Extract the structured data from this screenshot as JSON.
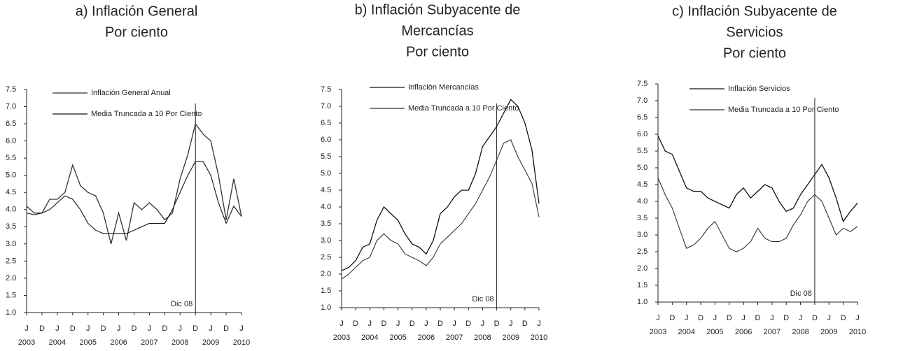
{
  "chart_data": [
    {
      "type": "line",
      "title": [
        "a) Inflación General"
      ],
      "subtitle": "Por ciento",
      "x": [
        "2003-06",
        "2003-09",
        "2003-12",
        "2004-03",
        "2004-06",
        "2004-09",
        "2004-12",
        "2005-03",
        "2005-06",
        "2005-09",
        "2005-12",
        "2006-03",
        "2006-06",
        "2006-09",
        "2006-12",
        "2007-03",
        "2007-06",
        "2007-09",
        "2007-12",
        "2008-03",
        "2008-06",
        "2008-09",
        "2008-12",
        "2009-03",
        "2009-06",
        "2009-09",
        "2009-12",
        "2010-03",
        "2010-06"
      ],
      "series": [
        {
          "name": "Inflación General Anual",
          "color": "#333333",
          "values": [
            4.1,
            3.9,
            3.9,
            4.3,
            4.3,
            4.5,
            5.3,
            4.7,
            4.5,
            4.4,
            3.9,
            3.0,
            3.9,
            3.1,
            4.2,
            4.0,
            4.2,
            4.0,
            3.7,
            3.9,
            4.9,
            5.6,
            6.5,
            6.2,
            6.0,
            5.0,
            3.7,
            4.9,
            3.8
          ]
        },
        {
          "name": "Media Truncada a 10 Por Ciento",
          "color": "#111111",
          "values": [
            3.9,
            3.85,
            3.9,
            4.0,
            4.2,
            4.4,
            4.3,
            4.0,
            3.6,
            3.4,
            3.3,
            3.3,
            3.3,
            3.3,
            3.4,
            3.5,
            3.6,
            3.6,
            3.6,
            4.0,
            4.5,
            5.0,
            5.4,
            5.4,
            5.0,
            4.2,
            3.6,
            4.1,
            3.8
          ]
        }
      ],
      "xlim": [
        "2003-06",
        "2010-06"
      ],
      "xticks": [
        {
          "value": "2003-06",
          "label": "J"
        },
        {
          "value": "2003-12",
          "label": "D"
        },
        {
          "value": "2004-06",
          "label": "J"
        },
        {
          "value": "2004-12",
          "label": "D"
        },
        {
          "value": "2005-06",
          "label": "J"
        },
        {
          "value": "2005-12",
          "label": "D"
        },
        {
          "value": "2006-06",
          "label": "J"
        },
        {
          "value": "2006-12",
          "label": "D"
        },
        {
          "value": "2007-06",
          "label": "J"
        },
        {
          "value": "2007-12",
          "label": "D"
        },
        {
          "value": "2008-06",
          "label": "J"
        },
        {
          "value": "2008-12",
          "label": "D"
        },
        {
          "value": "2009-06",
          "label": "J"
        },
        {
          "value": "2009-12",
          "label": "D"
        },
        {
          "value": "2010-06",
          "label": "J"
        }
      ],
      "year_labels": [
        {
          "value": "2003-06",
          "label": "2003"
        },
        {
          "value": "2004-06",
          "label": "2004"
        },
        {
          "value": "2005-06",
          "label": "2005"
        },
        {
          "value": "2006-06",
          "label": "2006"
        },
        {
          "value": "2007-06",
          "label": "2007"
        },
        {
          "value": "2008-06",
          "label": "2008"
        },
        {
          "value": "2009-06",
          "label": "2009"
        },
        {
          "value": "2010-06",
          "label": "2010"
        }
      ],
      "ylim": [
        1,
        7.5
      ],
      "yticks": [
        {
          "value": 1,
          "label": "1.0"
        },
        1.5,
        {
          "value": 2,
          "label": "2.0"
        },
        2.5,
        {
          "value": 3,
          "label": "3.0"
        },
        3.5,
        {
          "value": 4,
          "label": "4.0"
        },
        4.5,
        {
          "value": 5,
          "label": "5.0"
        },
        5.5,
        {
          "value": 6,
          "label": "6.0"
        },
        6.5,
        {
          "value": 7,
          "label": "7.0"
        },
        7.5
      ],
      "vline": "2008-12",
      "annotation": "Dic 08"
    },
    {
      "type": "line",
      "title": [
        "b) Inflación Subyacente de",
        "Mercancías"
      ],
      "subtitle": "Por ciento",
      "x": [
        "2003-06",
        "2003-09",
        "2003-12",
        "2004-03",
        "2004-06",
        "2004-09",
        "2004-12",
        "2005-03",
        "2005-06",
        "2005-09",
        "2005-12",
        "2006-03",
        "2006-06",
        "2006-09",
        "2006-12",
        "2007-03",
        "2007-06",
        "2007-09",
        "2007-12",
        "2008-03",
        "2008-06",
        "2008-09",
        "2008-12",
        "2009-03",
        "2009-06",
        "2009-09",
        "2009-12",
        "2010-03",
        "2010-06"
      ],
      "series": [
        {
          "name": "Inflación Mercancías",
          "color": "#111111",
          "values": [
            2.1,
            2.2,
            2.4,
            2.8,
            2.9,
            3.6,
            4.0,
            3.8,
            3.6,
            3.2,
            2.9,
            2.8,
            2.6,
            3.0,
            3.8,
            4.0,
            4.3,
            4.5,
            4.5,
            5.0,
            5.8,
            6.1,
            6.4,
            6.8,
            7.2,
            7.0,
            6.5,
            5.7,
            4.1
          ]
        },
        {
          "name": "Media Truncada a 10 Por Ciento",
          "color": "#333333",
          "values": [
            1.85,
            2.0,
            2.2,
            2.4,
            2.5,
            3.0,
            3.2,
            3.0,
            2.9,
            2.6,
            2.5,
            2.4,
            2.25,
            2.5,
            2.9,
            3.1,
            3.3,
            3.5,
            3.8,
            4.1,
            4.5,
            4.9,
            5.4,
            5.9,
            6.0,
            5.5,
            5.1,
            4.7,
            3.7
          ]
        }
      ],
      "xlim": [
        "2003-06",
        "2010-06"
      ],
      "xticks": [
        {
          "value": "2003-06",
          "label": "J"
        },
        {
          "value": "2003-12",
          "label": "D"
        },
        {
          "value": "2004-06",
          "label": "J"
        },
        {
          "value": "2004-12",
          "label": "D"
        },
        {
          "value": "2005-06",
          "label": "J"
        },
        {
          "value": "2005-12",
          "label": "D"
        },
        {
          "value": "2006-06",
          "label": "J"
        },
        {
          "value": "2006-12",
          "label": "D"
        },
        {
          "value": "2007-06",
          "label": "J"
        },
        {
          "value": "2007-12",
          "label": "D"
        },
        {
          "value": "2008-06",
          "label": "J"
        },
        {
          "value": "2008-12",
          "label": "D"
        },
        {
          "value": "2009-06",
          "label": "J"
        },
        {
          "value": "2009-12",
          "label": "D"
        },
        {
          "value": "2010-06",
          "label": "J"
        }
      ],
      "year_labels": [
        {
          "value": "2003-06",
          "label": "2003"
        },
        {
          "value": "2004-06",
          "label": "2004"
        },
        {
          "value": "2005-06",
          "label": "2005"
        },
        {
          "value": "2006-06",
          "label": "2006"
        },
        {
          "value": "2007-06",
          "label": "2007"
        },
        {
          "value": "2008-06",
          "label": "2008"
        },
        {
          "value": "2009-06",
          "label": "2009"
        },
        {
          "value": "2010-06",
          "label": "2010"
        }
      ],
      "ylim": [
        1,
        7.5
      ],
      "yticks": [
        {
          "value": 1,
          "label": "1.0"
        },
        1.5,
        {
          "value": 2,
          "label": "2.0"
        },
        2.5,
        {
          "value": 3,
          "label": "3.0"
        },
        3.5,
        {
          "value": 4,
          "label": "4.0"
        },
        4.5,
        {
          "value": 5,
          "label": "5.0"
        },
        5.5,
        {
          "value": 6,
          "label": "6.0"
        },
        6.5,
        {
          "value": 7,
          "label": "7.0"
        },
        7.5
      ],
      "vline": "2008-12",
      "annotation": "Dic 08"
    },
    {
      "type": "line",
      "title": [
        "c) Inflación Subyacente de",
        "Servicios"
      ],
      "subtitle": "Por ciento",
      "x": [
        "2003-06",
        "2003-09",
        "2003-12",
        "2004-03",
        "2004-06",
        "2004-09",
        "2004-12",
        "2005-03",
        "2005-06",
        "2005-09",
        "2005-12",
        "2006-03",
        "2006-06",
        "2006-09",
        "2006-12",
        "2007-03",
        "2007-06",
        "2007-09",
        "2007-12",
        "2008-03",
        "2008-06",
        "2008-09",
        "2008-12",
        "2009-03",
        "2009-06",
        "2009-09",
        "2009-12",
        "2010-03",
        "2010-06"
      ],
      "series": [
        {
          "name": "Inflación Servicios",
          "color": "#111111",
          "values": [
            5.95,
            5.5,
            5.4,
            4.9,
            4.4,
            4.3,
            4.3,
            4.1,
            4.0,
            3.9,
            3.8,
            4.2,
            4.4,
            4.1,
            4.3,
            4.5,
            4.4,
            4.0,
            3.7,
            3.8,
            4.2,
            4.5,
            4.8,
            5.1,
            4.7,
            4.1,
            3.4,
            3.7,
            3.95
          ]
        },
        {
          "name": "Media Truncada a 10 Por Ciento",
          "color": "#333333",
          "values": [
            4.7,
            4.2,
            3.8,
            3.2,
            2.6,
            2.7,
            2.9,
            3.2,
            3.4,
            3.0,
            2.6,
            2.5,
            2.6,
            2.8,
            3.2,
            2.9,
            2.8,
            2.8,
            2.9,
            3.3,
            3.6,
            4.0,
            4.2,
            4.0,
            3.5,
            3.0,
            3.2,
            3.1,
            3.25
          ]
        }
      ],
      "xlim": [
        "2003-06",
        "2010-06"
      ],
      "xticks": [
        {
          "value": "2003-06",
          "label": "J"
        },
        {
          "value": "2003-12",
          "label": "D"
        },
        {
          "value": "2004-06",
          "label": "J"
        },
        {
          "value": "2004-12",
          "label": "D"
        },
        {
          "value": "2005-06",
          "label": "J"
        },
        {
          "value": "2005-12",
          "label": "D"
        },
        {
          "value": "2006-06",
          "label": "J"
        },
        {
          "value": "2006-12",
          "label": "D"
        },
        {
          "value": "2007-06",
          "label": "J"
        },
        {
          "value": "2007-12",
          "label": "D"
        },
        {
          "value": "2008-06",
          "label": "J"
        },
        {
          "value": "2008-12",
          "label": "D"
        },
        {
          "value": "2009-06",
          "label": "J"
        },
        {
          "value": "2009-12",
          "label": "D"
        },
        {
          "value": "2010-06",
          "label": "J"
        }
      ],
      "year_labels": [
        {
          "value": "2003-06",
          "label": "2003"
        },
        {
          "value": "2004-06",
          "label": "2004"
        },
        {
          "value": "2005-06",
          "label": "2005"
        },
        {
          "value": "2006-06",
          "label": "2006"
        },
        {
          "value": "2007-06",
          "label": "2007"
        },
        {
          "value": "2008-06",
          "label": "2008"
        },
        {
          "value": "2009-06",
          "label": "2009"
        },
        {
          "value": "2010-06",
          "label": "2010"
        }
      ],
      "ylim": [
        1,
        7.5
      ],
      "yticks": [
        {
          "value": 1,
          "label": "1.0"
        },
        1.5,
        {
          "value": 2,
          "label": "2.0"
        },
        2.5,
        {
          "value": 3,
          "label": "3.0"
        },
        3.5,
        {
          "value": 4,
          "label": "4.0"
        },
        4.5,
        {
          "value": 5,
          "label": "5.0"
        },
        5.5,
        {
          "value": 6,
          "label": "6.0"
        },
        6.5,
        {
          "value": 7,
          "label": "7.0"
        },
        7.5
      ],
      "vline": "2008-12",
      "annotation": "Dic 08"
    }
  ]
}
